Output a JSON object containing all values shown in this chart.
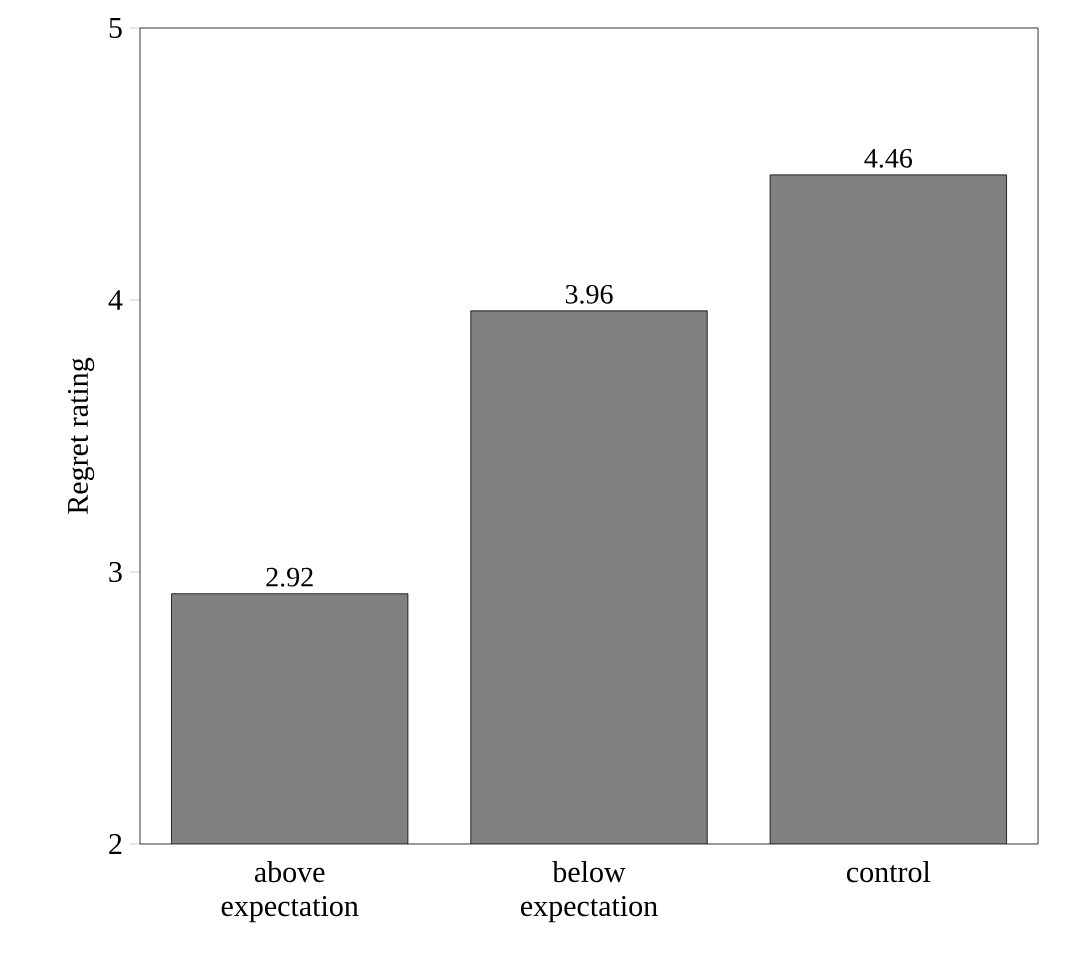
{
  "chart_data": {
    "type": "bar",
    "ylabel": "Regret rating",
    "categories": [
      "above expectation",
      "below expectation",
      "control"
    ],
    "values": [
      2.92,
      3.96,
      4.46
    ],
    "color": "#808080",
    "ylim": [
      2,
      5
    ],
    "yticks": [
      2,
      3,
      4,
      5
    ],
    "data_labels": true,
    "grid": false
  }
}
